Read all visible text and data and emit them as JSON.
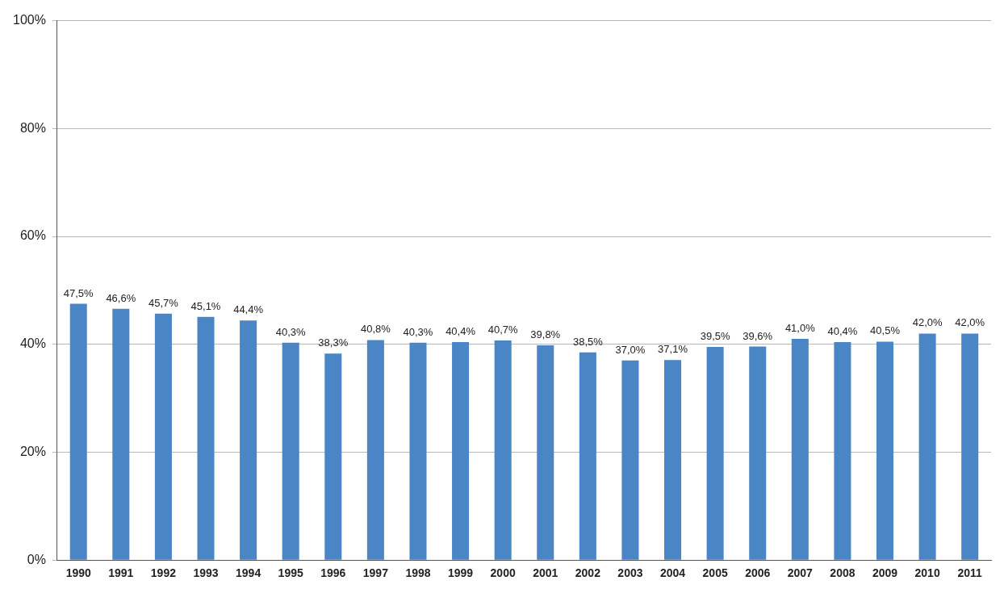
{
  "chart_data": {
    "type": "bar",
    "categories": [
      "1990",
      "1991",
      "1992",
      "1993",
      "1994",
      "1995",
      "1996",
      "1997",
      "1998",
      "1999",
      "2000",
      "2001",
      "2002",
      "2003",
      "2004",
      "2005",
      "2006",
      "2007",
      "2008",
      "2009",
      "2010",
      "2011"
    ],
    "values": [
      47.5,
      46.6,
      45.7,
      45.1,
      44.4,
      40.3,
      38.3,
      40.8,
      40.3,
      40.4,
      40.7,
      39.8,
      38.5,
      37.0,
      37.1,
      39.5,
      39.6,
      41.0,
      40.4,
      40.5,
      42.0,
      42.0
    ],
    "value_labels": [
      "47,5%",
      "46,6%",
      "45,7%",
      "45,1%",
      "44,4%",
      "40,3%",
      "38,3%",
      "40,8%",
      "40,3%",
      "40,4%",
      "40,7%",
      "39,8%",
      "38,5%",
      "37,0%",
      "37,1%",
      "39,5%",
      "39,6%",
      "41,0%",
      "40,4%",
      "40,5%",
      "42,0%",
      "42,0%"
    ],
    "color": "#4a86c5",
    "ylim": [
      0,
      100
    ],
    "yticks": [
      {
        "value": 0,
        "label": "0%"
      },
      {
        "value": 20,
        "label": "20%"
      },
      {
        "value": 40,
        "label": "40%"
      },
      {
        "value": 60,
        "label": "60%"
      },
      {
        "value": 80,
        "label": "80%"
      },
      {
        "value": 100,
        "label": "100%"
      }
    ],
    "grid": "y"
  }
}
